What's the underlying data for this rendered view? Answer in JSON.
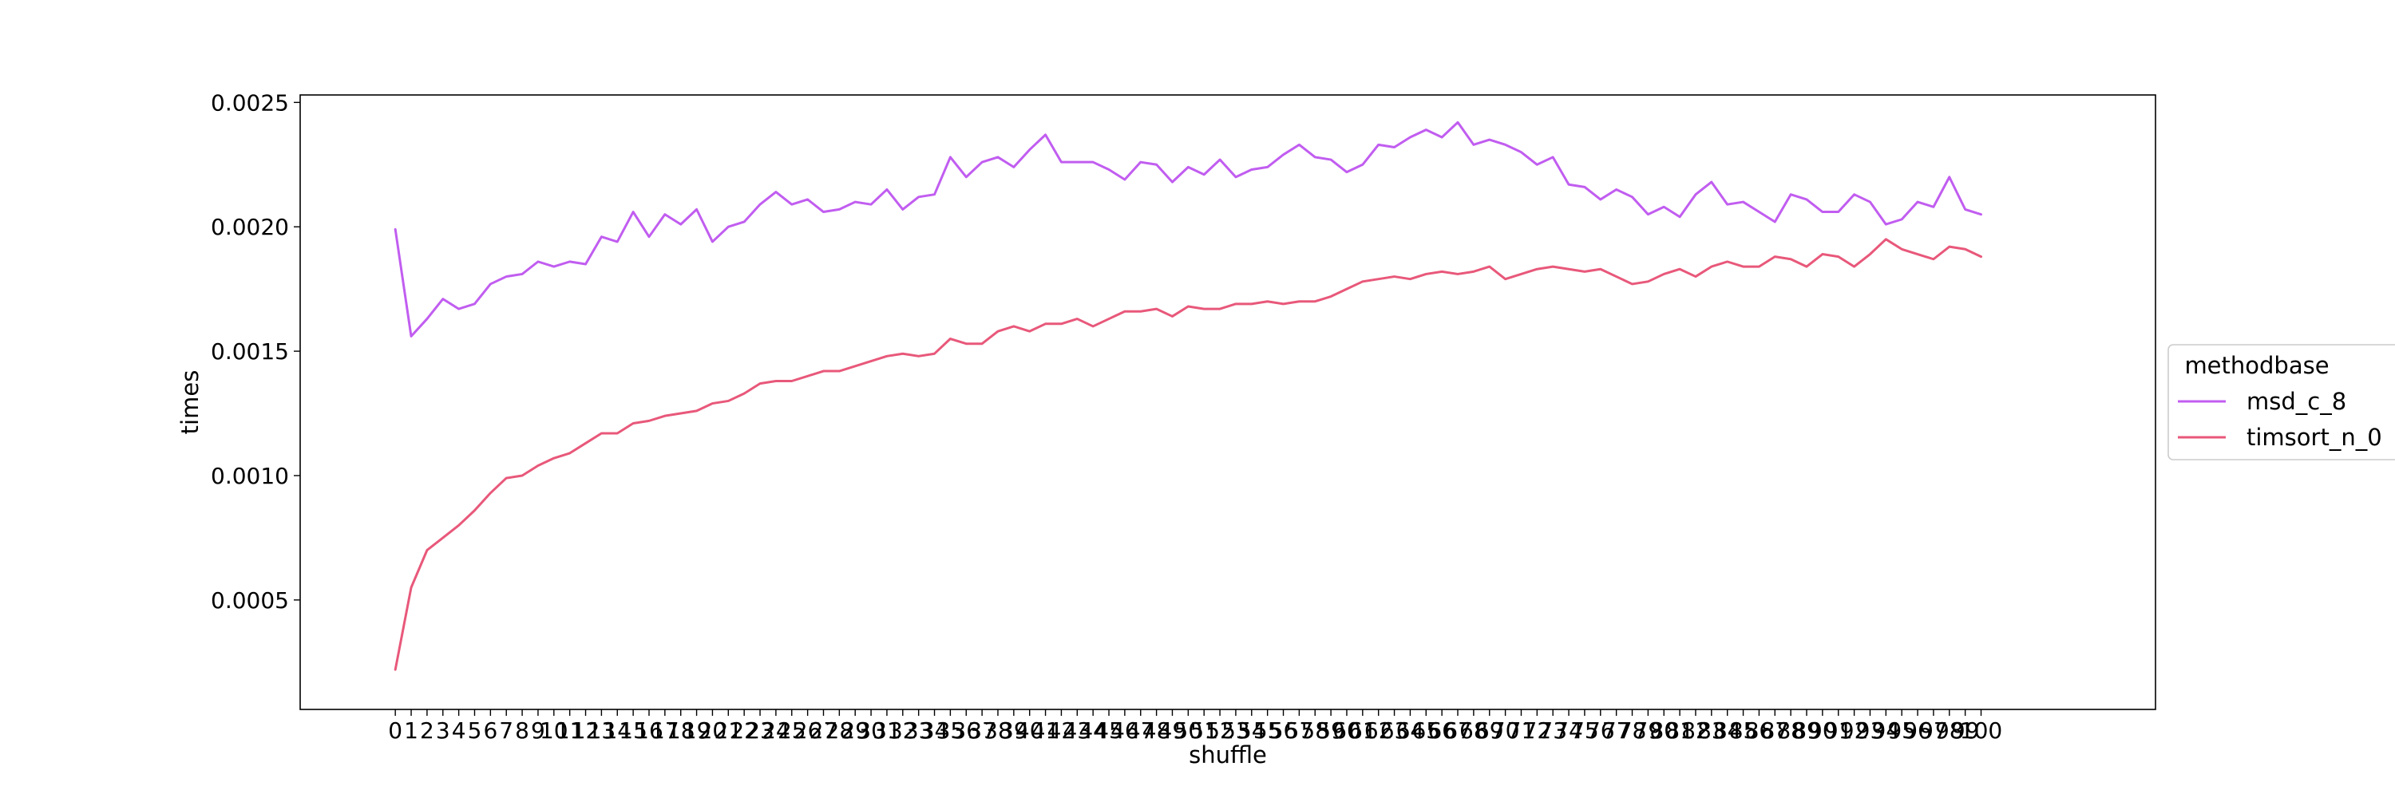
{
  "chart_data": {
    "type": "line",
    "xlabel": "shuffle",
    "ylabel": "times",
    "xlim": [
      -6,
      111
    ],
    "ylim": [
      6e-05,
      0.00253
    ],
    "xticks": [
      0,
      1,
      2,
      3,
      4,
      5,
      6,
      7,
      8,
      9,
      10,
      11,
      12,
      13,
      14,
      15,
      16,
      17,
      18,
      19,
      20,
      21,
      22,
      23,
      24,
      25,
      26,
      27,
      28,
      29,
      30,
      31,
      32,
      33,
      34,
      35,
      36,
      37,
      38,
      39,
      40,
      41,
      42,
      43,
      44,
      45,
      46,
      47,
      48,
      49,
      50,
      51,
      52,
      53,
      54,
      55,
      56,
      57,
      58,
      59,
      60,
      61,
      62,
      63,
      64,
      65,
      66,
      67,
      68,
      69,
      70,
      71,
      72,
      73,
      74,
      75,
      76,
      77,
      78,
      79,
      80,
      81,
      82,
      83,
      84,
      85,
      86,
      87,
      88,
      89,
      90,
      91,
      92,
      93,
      94,
      95,
      96,
      97,
      98,
      99,
      100
    ],
    "yticks": [
      0.0005,
      0.001,
      0.0015,
      0.002,
      0.0025
    ],
    "ytick_labels": [
      "0.0005",
      "0.0010",
      "0.0015",
      "0.0020",
      "0.0025"
    ],
    "grid": false,
    "legend": {
      "title": "methodbase",
      "placement": "outside-right"
    },
    "series": [
      {
        "name": "msd_c_8",
        "color": "#c15df0",
        "values": [
          0.00199,
          0.00156,
          0.00163,
          0.00171,
          0.00167,
          0.00169,
          0.00177,
          0.0018,
          0.00181,
          0.00186,
          0.00184,
          0.00186,
          0.00185,
          0.00196,
          0.00194,
          0.00206,
          0.00196,
          0.00205,
          0.00201,
          0.00207,
          0.00194,
          0.002,
          0.00202,
          0.00209,
          0.00214,
          0.00209,
          0.00211,
          0.00206,
          0.00207,
          0.0021,
          0.00209,
          0.00215,
          0.00207,
          0.00212,
          0.00213,
          0.00228,
          0.0022,
          0.00226,
          0.00228,
          0.00224,
          0.00231,
          0.00237,
          0.00226,
          0.00226,
          0.00226,
          0.00223,
          0.00219,
          0.00226,
          0.00225,
          0.00218,
          0.00224,
          0.00221,
          0.00227,
          0.0022,
          0.00223,
          0.00224,
          0.00229,
          0.00233,
          0.00228,
          0.00227,
          0.00222,
          0.00225,
          0.00233,
          0.00232,
          0.00236,
          0.00239,
          0.00236,
          0.00242,
          0.00233,
          0.00235,
          0.00233,
          0.0023,
          0.00225,
          0.00228,
          0.00217,
          0.00216,
          0.00211,
          0.00215,
          0.00212,
          0.00205,
          0.00208,
          0.00204,
          0.00213,
          0.00218,
          0.00209,
          0.0021,
          0.00206,
          0.00202,
          0.00213,
          0.00211,
          0.00206,
          0.00206,
          0.00213,
          0.0021,
          0.00201,
          0.00203,
          0.0021,
          0.00208,
          0.0022,
          0.00207,
          0.00205
        ]
      },
      {
        "name": "timsort_n_0",
        "color": "#e8587a",
        "values": [
          0.00022,
          0.00055,
          0.0007,
          0.00075,
          0.0008,
          0.00086,
          0.00093,
          0.00099,
          0.001,
          0.00104,
          0.00107,
          0.00109,
          0.00113,
          0.00117,
          0.00117,
          0.00121,
          0.00122,
          0.00124,
          0.00125,
          0.00126,
          0.00129,
          0.0013,
          0.00133,
          0.00137,
          0.00138,
          0.00138,
          0.0014,
          0.00142,
          0.00142,
          0.00144,
          0.00146,
          0.00148,
          0.00149,
          0.00148,
          0.00149,
          0.00155,
          0.00153,
          0.00153,
          0.00158,
          0.0016,
          0.00158,
          0.00161,
          0.00161,
          0.00163,
          0.0016,
          0.00163,
          0.00166,
          0.00166,
          0.00167,
          0.00164,
          0.00168,
          0.00167,
          0.00167,
          0.00169,
          0.00169,
          0.0017,
          0.00169,
          0.0017,
          0.0017,
          0.00172,
          0.00175,
          0.00178,
          0.00179,
          0.0018,
          0.00179,
          0.00181,
          0.00182,
          0.00181,
          0.00182,
          0.00184,
          0.00179,
          0.00181,
          0.00183,
          0.00184,
          0.00183,
          0.00182,
          0.00183,
          0.0018,
          0.00177,
          0.00178,
          0.00181,
          0.00183,
          0.0018,
          0.00184,
          0.00186,
          0.00184,
          0.00184,
          0.00188,
          0.00187,
          0.00184,
          0.00189,
          0.00188,
          0.00184,
          0.00189,
          0.00195,
          0.00191,
          0.00189,
          0.00187,
          0.00192,
          0.00191,
          0.00188
        ]
      }
    ]
  }
}
